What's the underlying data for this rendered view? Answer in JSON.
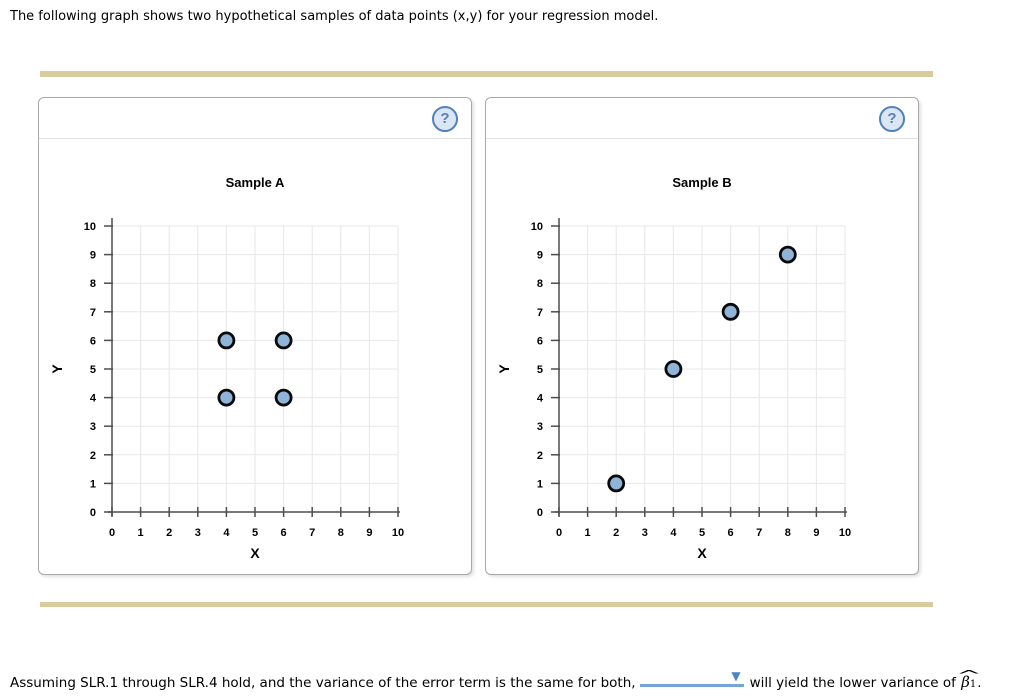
{
  "page": {
    "top_sentence": "The following graph shows two hypothetical samples of data points (x,y) for your regression model.",
    "accent_bar_color": "#d8cb9d"
  },
  "panels": [
    {
      "title": "Sample A",
      "help_label": "?"
    },
    {
      "title": "Sample B",
      "help_label": "?"
    }
  ],
  "bottom": {
    "part1": "Assuming SLR.1 through SLR.4 hold, and the variance of the error term is the same for both,",
    "dropdown_value": "",
    "dropdown_arrow": "▼",
    "part2": "will yield the lower variance of",
    "beta_symbol": "β",
    "beta_hat": "^",
    "beta_subscript": "1",
    "period": "."
  },
  "chart_data": [
    {
      "type": "scatter",
      "title": "Sample A",
      "xlabel": "X",
      "ylabel": "Y",
      "xlim": [
        0,
        10
      ],
      "ylim": [
        0,
        10
      ],
      "xticks": [
        0,
        1,
        2,
        3,
        4,
        5,
        6,
        7,
        8,
        9,
        10
      ],
      "yticks": [
        0,
        1,
        2,
        3,
        4,
        5,
        6,
        7,
        8,
        9,
        10
      ],
      "grid": true,
      "legend": false,
      "points": [
        [
          4,
          6
        ],
        [
          6,
          6
        ],
        [
          4,
          4
        ],
        [
          6,
          4
        ]
      ],
      "point_fill": "#8fb4d8",
      "point_stroke": "#0a0a0a"
    },
    {
      "type": "scatter",
      "title": "Sample B",
      "xlabel": "X",
      "ylabel": "Y",
      "xlim": [
        0,
        10
      ],
      "ylim": [
        0,
        10
      ],
      "xticks": [
        0,
        1,
        2,
        3,
        4,
        5,
        6,
        7,
        8,
        9,
        10
      ],
      "yticks": [
        0,
        1,
        2,
        3,
        4,
        5,
        6,
        7,
        8,
        9,
        10
      ],
      "grid": true,
      "legend": false,
      "points": [
        [
          2,
          1
        ],
        [
          4,
          5
        ],
        [
          6,
          7
        ],
        [
          8,
          9
        ]
      ],
      "point_fill": "#8fb4d8",
      "point_stroke": "#0a0a0a"
    }
  ]
}
